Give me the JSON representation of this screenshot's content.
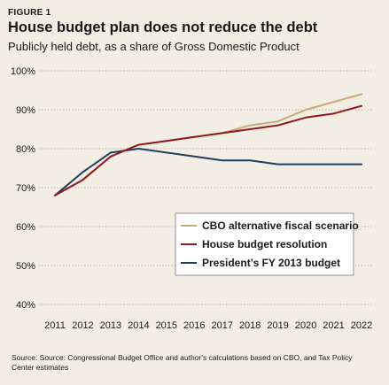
{
  "figure_label": "FIGURE 1",
  "title": "House budget plan does not reduce the debt",
  "subtitle": "Publicly held debt, as a share of Gross Domestic Product",
  "source": "Source: Source: Congressional Budget Office and author's calculations based on CBO, and Tax Policy Center estimates",
  "colors": {
    "background": "#f2eee4",
    "cbo": "#c8a97a",
    "house": "#8e1b22",
    "president": "#233d5c",
    "grid": "#9a978f"
  },
  "chart_data": {
    "type": "line",
    "x": [
      "2011",
      "2012",
      "2013",
      "2014",
      "2015",
      "2016",
      "2017",
      "2018",
      "2019",
      "2020",
      "2021",
      "2022"
    ],
    "ylim": [
      40,
      100
    ],
    "yticks": [
      40,
      50,
      60,
      70,
      80,
      90,
      100
    ],
    "ytick_labels": [
      "40%",
      "50%",
      "60%",
      "70%",
      "80%",
      "90%",
      "100%"
    ],
    "grid": "horizontal dotted",
    "legend_position": "lower-right",
    "series": [
      {
        "name": "CBO alternative fiscal scenario",
        "color": "#c8a97a",
        "values": [
          68,
          72,
          78,
          81,
          82,
          83,
          84,
          86,
          87,
          90,
          92,
          94
        ]
      },
      {
        "name": "House budget resolution",
        "color": "#8e1b22",
        "values": [
          68,
          72,
          78,
          81,
          82,
          83,
          84,
          85,
          86,
          88,
          89,
          91
        ]
      },
      {
        "name": "President’s FY 2013 budget",
        "color": "#233d5c",
        "values": [
          68,
          74,
          79,
          80,
          79,
          78,
          77,
          77,
          76,
          76,
          76,
          76
        ]
      }
    ]
  }
}
